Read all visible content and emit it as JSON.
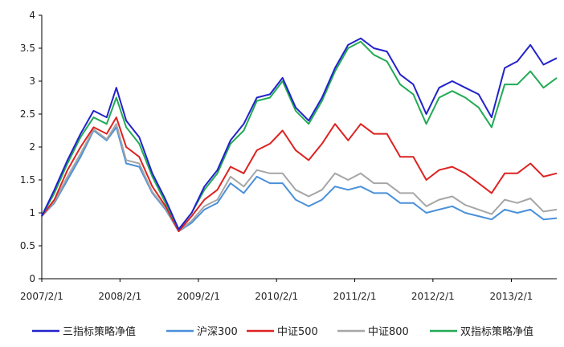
{
  "chart_data": {
    "type": "line",
    "title": "",
    "xlabel": "",
    "ylabel": "",
    "ylim": [
      0,
      4
    ],
    "yticks": [
      "0",
      "0.5",
      "1",
      "1.5",
      "2",
      "2.5",
      "3",
      "3.5",
      "4"
    ],
    "xticks": [
      "2007/2/1",
      "2008/2/1",
      "2009/2/1",
      "2010/2/1",
      "2011/2/1",
      "2012/2/1",
      "2013/2/1"
    ],
    "x_range": [
      "2007/2/1",
      "2013/9/1"
    ],
    "grid": false,
    "legend_position": "bottom",
    "series": [
      {
        "name": "三指标策略净值",
        "color": "#2222cc",
        "points": [
          [
            "2007/2/1",
            0.95
          ],
          [
            "2007/4/1",
            1.35
          ],
          [
            "2007/6/1",
            1.8
          ],
          [
            "2007/8/1",
            2.2
          ],
          [
            "2007/10/1",
            2.55
          ],
          [
            "2007/12/1",
            2.45
          ],
          [
            "2008/1/15",
            2.9
          ],
          [
            "2008/3/1",
            2.4
          ],
          [
            "2008/5/1",
            2.15
          ],
          [
            "2008/7/1",
            1.6
          ],
          [
            "2008/9/1",
            1.2
          ],
          [
            "2008/11/1",
            0.75
          ],
          [
            "2009/1/1",
            1.0
          ],
          [
            "2009/3/1",
            1.4
          ],
          [
            "2009/5/1",
            1.65
          ],
          [
            "2009/7/1",
            2.1
          ],
          [
            "2009/9/1",
            2.35
          ],
          [
            "2009/11/1",
            2.75
          ],
          [
            "2010/1/1",
            2.8
          ],
          [
            "2010/3/1",
            3.05
          ],
          [
            "2010/5/1",
            2.6
          ],
          [
            "2010/7/1",
            2.4
          ],
          [
            "2010/9/1",
            2.75
          ],
          [
            "2010/11/1",
            3.2
          ],
          [
            "2011/1/1",
            3.55
          ],
          [
            "2011/3/1",
            3.65
          ],
          [
            "2011/5/1",
            3.5
          ],
          [
            "2011/7/1",
            3.45
          ],
          [
            "2011/9/1",
            3.1
          ],
          [
            "2011/11/1",
            2.95
          ],
          [
            "2012/1/1",
            2.5
          ],
          [
            "2012/3/1",
            2.9
          ],
          [
            "2012/5/1",
            3.0
          ],
          [
            "2012/7/1",
            2.9
          ],
          [
            "2012/9/1",
            2.8
          ],
          [
            "2012/11/1",
            2.45
          ],
          [
            "2013/1/1",
            3.2
          ],
          [
            "2013/3/1",
            3.3
          ],
          [
            "2013/5/1",
            3.55
          ],
          [
            "2013/7/1",
            3.25
          ],
          [
            "2013/9/1",
            3.35
          ]
        ]
      },
      {
        "name": "沪深300",
        "color": "#4a90d9",
        "points": [
          [
            "2007/2/1",
            0.95
          ],
          [
            "2007/4/1",
            1.15
          ],
          [
            "2007/6/1",
            1.5
          ],
          [
            "2007/8/1",
            1.85
          ],
          [
            "2007/10/1",
            2.25
          ],
          [
            "2007/12/1",
            2.1
          ],
          [
            "2008/1/15",
            2.3
          ],
          [
            "2008/3/1",
            1.75
          ],
          [
            "2008/5/1",
            1.7
          ],
          [
            "2008/7/1",
            1.3
          ],
          [
            "2008/9/1",
            1.05
          ],
          [
            "2008/11/1",
            0.72
          ],
          [
            "2009/1/1",
            0.85
          ],
          [
            "2009/3/1",
            1.05
          ],
          [
            "2009/5/1",
            1.15
          ],
          [
            "2009/7/1",
            1.45
          ],
          [
            "2009/9/1",
            1.3
          ],
          [
            "2009/11/1",
            1.55
          ],
          [
            "2010/1/1",
            1.45
          ],
          [
            "2010/3/1",
            1.45
          ],
          [
            "2010/5/1",
            1.2
          ],
          [
            "2010/7/1",
            1.1
          ],
          [
            "2010/9/1",
            1.2
          ],
          [
            "2010/11/1",
            1.4
          ],
          [
            "2011/1/1",
            1.35
          ],
          [
            "2011/3/1",
            1.4
          ],
          [
            "2011/5/1",
            1.3
          ],
          [
            "2011/7/1",
            1.3
          ],
          [
            "2011/9/1",
            1.15
          ],
          [
            "2011/11/1",
            1.15
          ],
          [
            "2012/1/1",
            1.0
          ],
          [
            "2012/3/1",
            1.05
          ],
          [
            "2012/5/1",
            1.1
          ],
          [
            "2012/7/1",
            1.0
          ],
          [
            "2012/9/1",
            0.95
          ],
          [
            "2012/11/1",
            0.9
          ],
          [
            "2013/1/1",
            1.05
          ],
          [
            "2013/3/1",
            1.0
          ],
          [
            "2013/5/1",
            1.05
          ],
          [
            "2013/7/1",
            0.9
          ],
          [
            "2013/9/1",
            0.92
          ]
        ]
      },
      {
        "name": "中证500",
        "color": "#dd2222",
        "points": [
          [
            "2007/2/1",
            0.95
          ],
          [
            "2007/4/1",
            1.2
          ],
          [
            "2007/6/1",
            1.65
          ],
          [
            "2007/8/1",
            2.0
          ],
          [
            "2007/10/1",
            2.3
          ],
          [
            "2007/12/1",
            2.2
          ],
          [
            "2008/1/15",
            2.45
          ],
          [
            "2008/3/1",
            2.0
          ],
          [
            "2008/5/1",
            1.85
          ],
          [
            "2008/7/1",
            1.4
          ],
          [
            "2008/9/1",
            1.1
          ],
          [
            "2008/11/1",
            0.72
          ],
          [
            "2009/1/1",
            0.95
          ],
          [
            "2009/3/1",
            1.2
          ],
          [
            "2009/5/1",
            1.35
          ],
          [
            "2009/7/1",
            1.7
          ],
          [
            "2009/9/1",
            1.6
          ],
          [
            "2009/11/1",
            1.95
          ],
          [
            "2010/1/1",
            2.05
          ],
          [
            "2010/3/1",
            2.25
          ],
          [
            "2010/5/1",
            1.95
          ],
          [
            "2010/7/1",
            1.8
          ],
          [
            "2010/9/1",
            2.05
          ],
          [
            "2010/11/1",
            2.35
          ],
          [
            "2011/1/1",
            2.1
          ],
          [
            "2011/3/1",
            2.35
          ],
          [
            "2011/5/1",
            2.2
          ],
          [
            "2011/7/1",
            2.2
          ],
          [
            "2011/9/1",
            1.85
          ],
          [
            "2011/11/1",
            1.85
          ],
          [
            "2012/1/1",
            1.5
          ],
          [
            "2012/3/1",
            1.65
          ],
          [
            "2012/5/1",
            1.7
          ],
          [
            "2012/7/1",
            1.6
          ],
          [
            "2012/9/1",
            1.45
          ],
          [
            "2012/11/1",
            1.3
          ],
          [
            "2013/1/1",
            1.6
          ],
          [
            "2013/3/1",
            1.6
          ],
          [
            "2013/5/1",
            1.75
          ],
          [
            "2013/7/1",
            1.55
          ],
          [
            "2013/9/1",
            1.6
          ]
        ]
      },
      {
        "name": "中证800",
        "color": "#a6a6a6",
        "points": [
          [
            "2007/2/1",
            0.95
          ],
          [
            "2007/4/1",
            1.17
          ],
          [
            "2007/6/1",
            1.55
          ],
          [
            "2007/8/1",
            1.9
          ],
          [
            "2007/10/1",
            2.27
          ],
          [
            "2007/12/1",
            2.12
          ],
          [
            "2008/1/15",
            2.35
          ],
          [
            "2008/3/1",
            1.8
          ],
          [
            "2008/5/1",
            1.75
          ],
          [
            "2008/7/1",
            1.32
          ],
          [
            "2008/9/1",
            1.07
          ],
          [
            "2008/11/1",
            0.72
          ],
          [
            "2009/1/1",
            0.88
          ],
          [
            "2009/3/1",
            1.1
          ],
          [
            "2009/5/1",
            1.2
          ],
          [
            "2009/7/1",
            1.55
          ],
          [
            "2009/9/1",
            1.4
          ],
          [
            "2009/11/1",
            1.65
          ],
          [
            "2010/1/1",
            1.6
          ],
          [
            "2010/3/1",
            1.6
          ],
          [
            "2010/5/1",
            1.35
          ],
          [
            "2010/7/1",
            1.25
          ],
          [
            "2010/9/1",
            1.35
          ],
          [
            "2010/11/1",
            1.6
          ],
          [
            "2011/1/1",
            1.5
          ],
          [
            "2011/3/1",
            1.6
          ],
          [
            "2011/5/1",
            1.45
          ],
          [
            "2011/7/1",
            1.45
          ],
          [
            "2011/9/1",
            1.3
          ],
          [
            "2011/11/1",
            1.3
          ],
          [
            "2012/1/1",
            1.1
          ],
          [
            "2012/3/1",
            1.2
          ],
          [
            "2012/5/1",
            1.25
          ],
          [
            "2012/7/1",
            1.12
          ],
          [
            "2012/9/1",
            1.05
          ],
          [
            "2012/11/1",
            0.98
          ],
          [
            "2013/1/1",
            1.2
          ],
          [
            "2013/3/1",
            1.15
          ],
          [
            "2013/5/1",
            1.22
          ],
          [
            "2013/7/1",
            1.02
          ],
          [
            "2013/9/1",
            1.05
          ]
        ]
      },
      {
        "name": "双指标策略净值",
        "color": "#22aa55",
        "points": [
          [
            "2007/2/1",
            0.95
          ],
          [
            "2007/4/1",
            1.3
          ],
          [
            "2007/6/1",
            1.75
          ],
          [
            "2007/8/1",
            2.15
          ],
          [
            "2007/10/1",
            2.45
          ],
          [
            "2007/12/1",
            2.35
          ],
          [
            "2008/1/15",
            2.75
          ],
          [
            "2008/3/1",
            2.3
          ],
          [
            "2008/5/1",
            2.05
          ],
          [
            "2008/7/1",
            1.55
          ],
          [
            "2008/9/1",
            1.15
          ],
          [
            "2008/11/1",
            0.75
          ],
          [
            "2009/1/1",
            1.0
          ],
          [
            "2009/3/1",
            1.35
          ],
          [
            "2009/5/1",
            1.6
          ],
          [
            "2009/7/1",
            2.05
          ],
          [
            "2009/9/1",
            2.25
          ],
          [
            "2009/11/1",
            2.7
          ],
          [
            "2010/1/1",
            2.75
          ],
          [
            "2010/3/1",
            3.0
          ],
          [
            "2010/5/1",
            2.55
          ],
          [
            "2010/7/1",
            2.35
          ],
          [
            "2010/9/1",
            2.7
          ],
          [
            "2010/11/1",
            3.15
          ],
          [
            "2011/1/1",
            3.5
          ],
          [
            "2011/3/1",
            3.6
          ],
          [
            "2011/5/1",
            3.4
          ],
          [
            "2011/7/1",
            3.3
          ],
          [
            "2011/9/1",
            2.95
          ],
          [
            "2011/11/1",
            2.8
          ],
          [
            "2012/1/1",
            2.35
          ],
          [
            "2012/3/1",
            2.75
          ],
          [
            "2012/5/1",
            2.85
          ],
          [
            "2012/7/1",
            2.75
          ],
          [
            "2012/9/1",
            2.6
          ],
          [
            "2012/11/1",
            2.3
          ],
          [
            "2013/1/1",
            2.95
          ],
          [
            "2013/3/1",
            2.95
          ],
          [
            "2013/5/1",
            3.15
          ],
          [
            "2013/7/1",
            2.9
          ],
          [
            "2013/9/1",
            3.05
          ]
        ]
      }
    ]
  }
}
